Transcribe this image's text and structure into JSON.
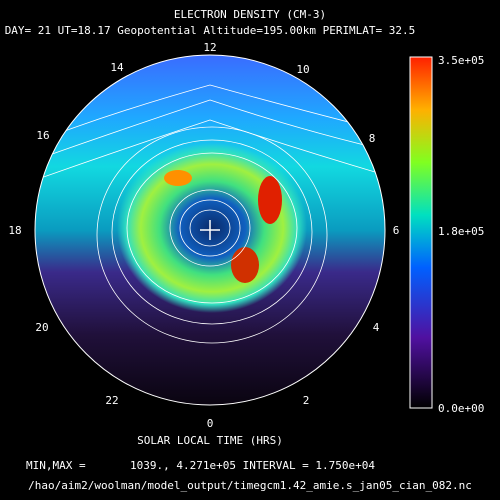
{
  "header": {
    "title": "ELECTRON DENSITY (CM-3)",
    "subtitle": "DAY= 21 UT=18.17 Geopotential Altitude=195.00km PERIMLAT= 32.5"
  },
  "plot": {
    "hour_labels": [
      "12",
      "14",
      "16",
      "18",
      "20",
      "22",
      "0",
      "2",
      "4",
      "6",
      "8",
      "10"
    ],
    "axis_label": "SOLAR LOCAL TIME (HRS)"
  },
  "colorbar": {
    "labels": [
      "3.5e+05",
      "1.8e+05",
      "0.0e+00"
    ]
  },
  "footer": {
    "minmax_label": "MIN,MAX =",
    "minmax_values": "1039., 4.271e+05 INTERVAL =  1.750e+04",
    "file_path": "/hao/aim2/woolman/model_output/timegcm1.42_amie.s_jan05_cian_082.nc"
  }
}
